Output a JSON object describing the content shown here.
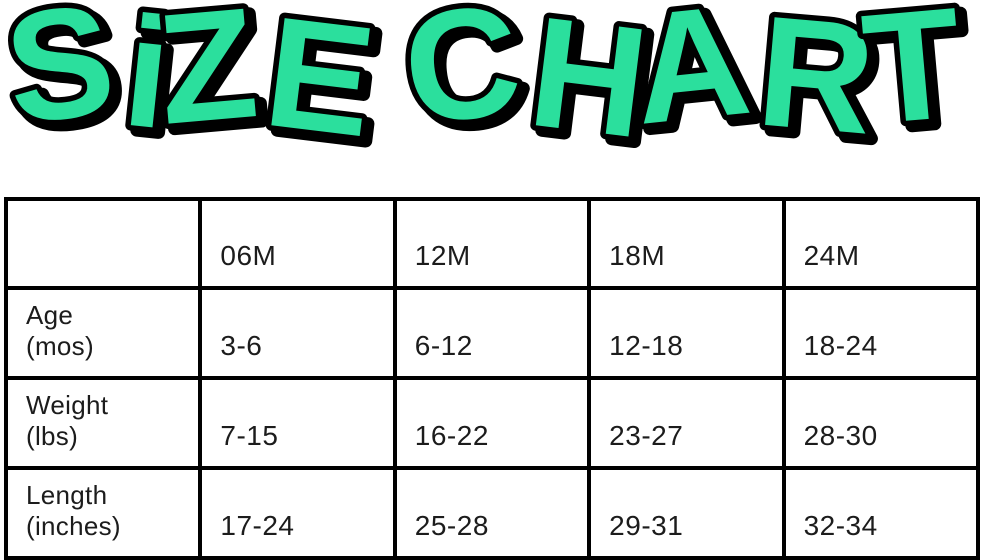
{
  "colors": {
    "title_fill": "#2BDF9D",
    "title_outline": "#000000",
    "table_border": "#000000",
    "text": "#1C1C1C",
    "background": "#FFFFFF"
  },
  "chart_data": {
    "type": "table",
    "title": "SiZE CHART",
    "columns": [
      "06M",
      "12M",
      "18M",
      "24M"
    ],
    "rows": [
      {
        "label_line1": "Age",
        "label_line2": "(mos)",
        "values": [
          "3-6",
          "6-12",
          "12-18",
          "18-24"
        ]
      },
      {
        "label_line1": "Weight",
        "label_line2": "(lbs)",
        "values": [
          "7-15",
          "16-22",
          "23-27",
          "28-30"
        ]
      },
      {
        "label_line1": "Length",
        "label_line2": "(inches)",
        "values": [
          "17-24",
          "25-28",
          "29-31",
          "32-34"
        ]
      }
    ],
    "layout": {
      "grid": "visible-black-borders",
      "corner_cell": "empty-borderless",
      "legend_position": "none"
    }
  }
}
